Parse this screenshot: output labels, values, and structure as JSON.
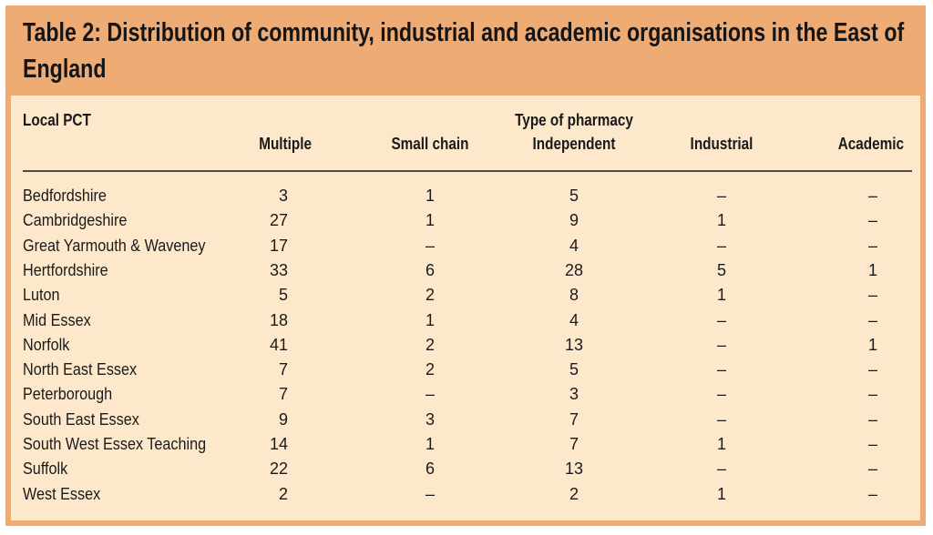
{
  "title": "Table 2: Distribution of community, industrial and academic organisations in the East of England",
  "table": {
    "group_header": "Type of pharmacy",
    "columns": [
      "Local PCT",
      "Multiple",
      "Small chain",
      "Independent",
      "Industrial",
      "Academic"
    ],
    "rows": [
      [
        "Bedfordshire",
        "3",
        "1",
        "5",
        "–",
        "–"
      ],
      [
        "Cambridgeshire",
        "27",
        "1",
        "9",
        "1",
        "–"
      ],
      [
        "Great Yarmouth & Waveney",
        "17",
        "–",
        "4",
        "–",
        "–"
      ],
      [
        "Hertfordshire",
        "33",
        "6",
        "28",
        "5",
        "1"
      ],
      [
        "Luton",
        "5",
        "2",
        "8",
        "1",
        "–"
      ],
      [
        "Mid Essex",
        "18",
        "1",
        "4",
        "–",
        "–"
      ],
      [
        "Norfolk",
        "41",
        "2",
        "13",
        "–",
        "1"
      ],
      [
        "North East Essex",
        "7",
        "2",
        "5",
        "–",
        "–"
      ],
      [
        "Peterborough",
        "7",
        "–",
        "3",
        "–",
        "–"
      ],
      [
        "South East Essex",
        "9",
        "3",
        "7",
        "–",
        "–"
      ],
      [
        "South West Essex Teaching",
        "14",
        "1",
        "7",
        "1",
        "–"
      ],
      [
        "Suffolk",
        "22",
        "6",
        "13",
        "–",
        "–"
      ],
      [
        "West Essex",
        "2",
        "–",
        "2",
        "1",
        "–"
      ]
    ]
  },
  "colors": {
    "frame": "#eeab74",
    "panel": "#fde8cc",
    "text": "#1a1a1a"
  }
}
